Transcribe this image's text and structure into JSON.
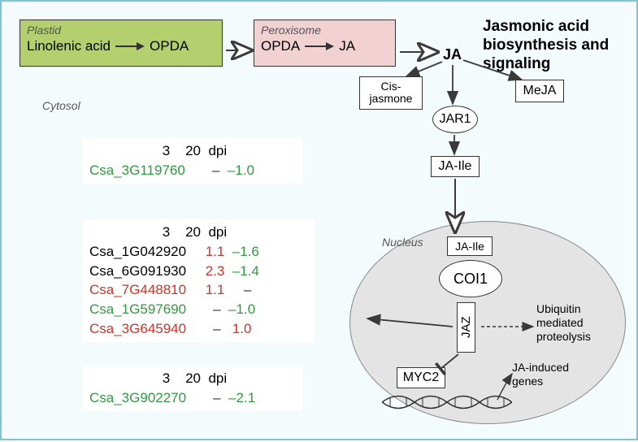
{
  "title": "Jasmonic acid biosynthesis and signaling",
  "compartments": {
    "plastid": {
      "label": "Plastid",
      "mol_from": "Linolenic acid",
      "mol_to": "OPDA",
      "bg": "#b4cf6d"
    },
    "peroxisome": {
      "label": "Peroxisome",
      "mol_from": "OPDA",
      "mol_to": "JA",
      "bg": "#f1d1d1"
    },
    "cytosol": "Cytosol",
    "nucleus": "Nucleus"
  },
  "molecules": {
    "ja": "JA",
    "cis_jasmone": "Cis-jasmone",
    "meja": "MeJA",
    "jar1": "JAR1",
    "ja_ile": "JA-Ile",
    "coi1": "COI1",
    "jaz": "JAZ",
    "myc2": "MYC2"
  },
  "annotations": {
    "ub": "Ubiquitin mediated proteolysis",
    "ja_genes": "JA-induced genes"
  },
  "tables": {
    "header": {
      "c1": "3",
      "c2": "20",
      "c3": "dpi"
    },
    "t1": {
      "rows": [
        {
          "gene": "Csa_3G119760",
          "gene_color": "green",
          "v3": "–",
          "v3_color": "dash",
          "v20": "–1.0",
          "v20_color": "green"
        }
      ]
    },
    "t2": {
      "rows": [
        {
          "gene": "Csa_1G042920",
          "gene_color": "black",
          "v3": "1.1",
          "v3_color": "red",
          "v20": "–1.6",
          "v20_color": "green"
        },
        {
          "gene": "Csa_6G091930",
          "gene_color": "black",
          "v3": "2.3",
          "v3_color": "red",
          "v20": "–1.4",
          "v20_color": "green"
        },
        {
          "gene": "Csa_7G448810",
          "gene_color": "red",
          "v3": "1.1",
          "v3_color": "red",
          "v20": "–",
          "v20_color": "dash"
        },
        {
          "gene": "Csa_1G597690",
          "gene_color": "green",
          "v3": "–",
          "v3_color": "dash",
          "v20": "–1.0",
          "v20_color": "green"
        },
        {
          "gene": "Csa_3G645940",
          "gene_color": "red",
          "v3": "–",
          "v3_color": "dash",
          "v20": "1.0",
          "v20_color": "red"
        }
      ]
    },
    "t3": {
      "rows": [
        {
          "gene": "Csa_3G902270",
          "gene_color": "green",
          "v3": "–",
          "v3_color": "dash",
          "v20": "–2.1",
          "v20_color": "green"
        }
      ]
    }
  },
  "colors": {
    "border": "#7fc5d1",
    "bg": "#f4fbfc",
    "nucleus_fill": "#e4e4e4",
    "green": "#2e9b3e",
    "red": "#d23228",
    "black": "#000000",
    "arrow": "#3a3a3a"
  }
}
